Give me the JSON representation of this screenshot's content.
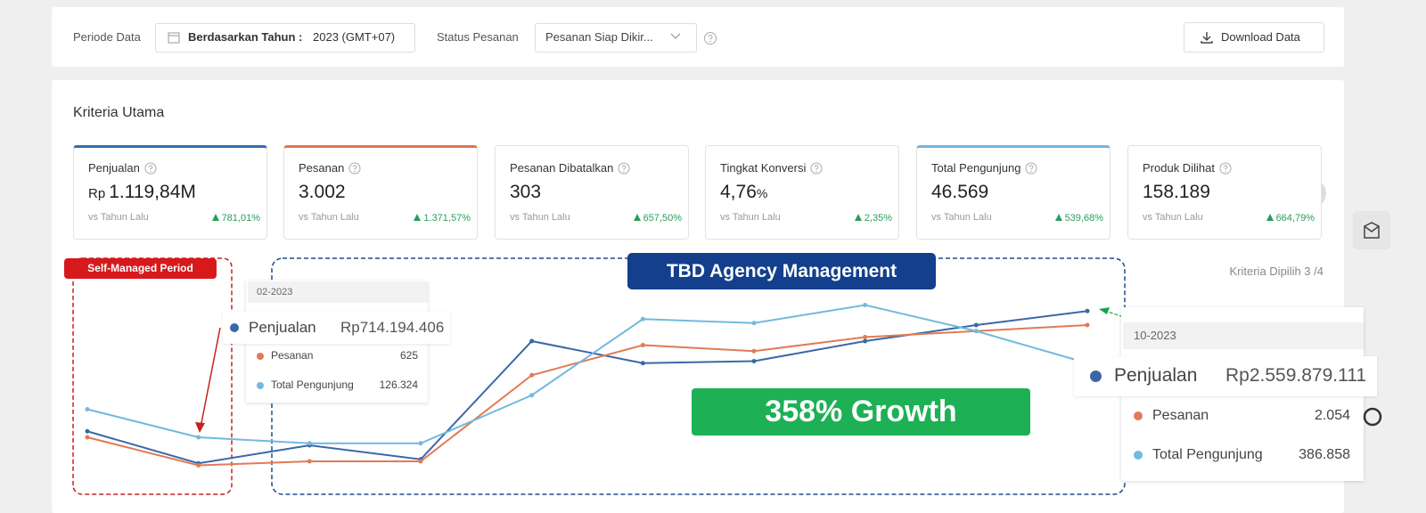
{
  "filters": {
    "period_label": "Periode Data",
    "period_type": "Berdasarkan Tahun :",
    "period_year": "2023 (GMT+07)",
    "status_label": "Status Pesanan",
    "status_value": "Pesanan Siap Dikir...",
    "download": "Download Data"
  },
  "section_title": "Kriteria Utama",
  "kpis": [
    {
      "label": "Penjualan",
      "prefix": "Rp",
      "value": "1.119,84M",
      "compare": "vs Tahun Lalu",
      "change": "781,01%",
      "accent": "#2f6db5"
    },
    {
      "label": "Pesanan",
      "value": "3.002",
      "compare": "vs Tahun Lalu",
      "change": "1.371,57%",
      "accent": "#e2734f"
    },
    {
      "label": "Pesanan Dibatalkan",
      "value": "303",
      "compare": "vs Tahun Lalu",
      "change": "657,50%"
    },
    {
      "label": "Tingkat Konversi",
      "value": "4,76",
      "unit": "%",
      "compare": "vs Tahun Lalu",
      "change": "2,35%"
    },
    {
      "label": "Total Pengunjung",
      "value": "46.569",
      "compare": "vs Tahun Lalu",
      "change": "539,68%",
      "accent": "#6fb8dc"
    },
    {
      "label": "Produk Dilihat",
      "value": "158.189",
      "compare": "vs Tahun Lalu",
      "change": "664,79%"
    }
  ],
  "selected": "Kriteria Dipilih 3 /4",
  "annotations": {
    "self_managed": "Self-Managed Period",
    "agency": "TBD Agency Management",
    "growth": "358% Growth"
  },
  "tooltips": [
    {
      "date": "02-2023",
      "values": [
        "Rp714.194.406",
        "625",
        "126.324"
      ]
    },
    {
      "date": "10-2023",
      "values": [
        "Rp2.559.879.111",
        "2.054",
        "386.858"
      ]
    }
  ],
  "chart_data": {
    "type": "line",
    "categories": [
      null,
      null,
      null,
      null,
      null,
      null,
      null,
      null,
      null,
      null
    ],
    "ylim": [
      0,
      100
    ],
    "series": [
      {
        "name": "Penjualan",
        "color": "#3b67a8",
        "values": [
          27,
          11,
          20,
          13,
          72,
          61,
          62,
          72,
          80,
          87
        ]
      },
      {
        "name": "Pesanan",
        "color": "#e07b55",
        "values": [
          24,
          10,
          12,
          12,
          55,
          70,
          67,
          74,
          77,
          80
        ]
      },
      {
        "name": "Total Pengunjung",
        "color": "#72b9dd",
        "values": [
          38,
          24,
          21,
          21,
          45,
          83,
          81,
          90,
          77,
          61
        ]
      }
    ]
  }
}
